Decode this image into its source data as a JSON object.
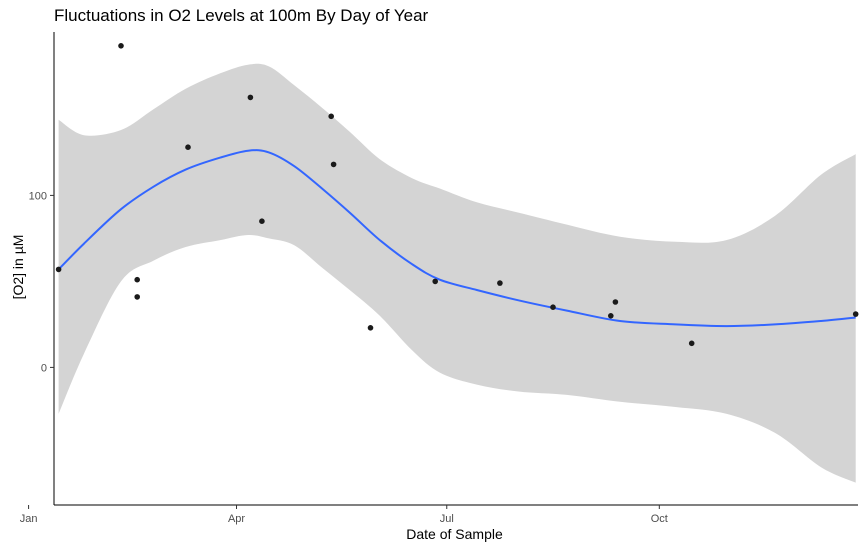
{
  "chart_data": {
    "type": "scatter",
    "title": "Fluctuations in O2 Levels at 100m By Day of Year",
    "xlabel": "Date of Sample",
    "ylabel": "[O2] in µM",
    "x_domain": [
      "2019-01-12",
      "2019-12-26"
    ],
    "ylim": [
      -80,
      195
    ],
    "x_ticks": [
      {
        "date": "2019-01-01",
        "label": "Jan"
      },
      {
        "date": "2019-04-01",
        "label": "Apr"
      },
      {
        "date": "2019-07-01",
        "label": "Jul"
      },
      {
        "date": "2019-10-01",
        "label": "Oct"
      }
    ],
    "y_ticks": [
      0,
      100
    ],
    "grid": false,
    "legend": "none",
    "colors": {
      "points": "#1a1a1a",
      "smooth_line": "#3366ff",
      "confidence_band": "#d4d4d4",
      "axis": "#000000"
    },
    "points": [
      {
        "x": "2019-01-14",
        "y": 57
      },
      {
        "x": "2019-02-10",
        "y": 187
      },
      {
        "x": "2019-02-17",
        "y": 51
      },
      {
        "x": "2019-02-17",
        "y": 41
      },
      {
        "x": "2019-03-11",
        "y": 128
      },
      {
        "x": "2019-04-07",
        "y": 157
      },
      {
        "x": "2019-04-12",
        "y": 85
      },
      {
        "x": "2019-05-12",
        "y": 146
      },
      {
        "x": "2019-05-13",
        "y": 118
      },
      {
        "x": "2019-05-29",
        "y": 23
      },
      {
        "x": "2019-06-26",
        "y": 50
      },
      {
        "x": "2019-07-24",
        "y": 49
      },
      {
        "x": "2019-08-16",
        "y": 35
      },
      {
        "x": "2019-09-10",
        "y": 30
      },
      {
        "x": "2019-09-12",
        "y": 38
      },
      {
        "x": "2019-10-15",
        "y": 14
      },
      {
        "x": "2019-12-25",
        "y": 31
      }
    ],
    "smooth_fit": [
      {
        "x": "2019-01-14",
        "y": 57,
        "lower": -27,
        "upper": 144
      },
      {
        "x": "2019-01-25",
        "y": 72,
        "lower": 8,
        "upper": 135
      },
      {
        "x": "2019-02-10",
        "y": 92,
        "lower": 50,
        "upper": 138
      },
      {
        "x": "2019-02-24",
        "y": 105,
        "lower": 62,
        "upper": 150
      },
      {
        "x": "2019-03-10",
        "y": 115,
        "lower": 70,
        "upper": 162
      },
      {
        "x": "2019-03-25",
        "y": 122,
        "lower": 74,
        "upper": 171
      },
      {
        "x": "2019-04-06",
        "y": 126,
        "lower": 77,
        "upper": 176
      },
      {
        "x": "2019-04-15",
        "y": 125,
        "lower": 75,
        "upper": 175
      },
      {
        "x": "2019-04-26",
        "y": 117,
        "lower": 71,
        "upper": 164
      },
      {
        "x": "2019-05-08",
        "y": 104,
        "lower": 58,
        "upper": 151
      },
      {
        "x": "2019-05-20",
        "y": 90,
        "lower": 45,
        "upper": 137
      },
      {
        "x": "2019-06-02",
        "y": 74,
        "lower": 30,
        "upper": 121
      },
      {
        "x": "2019-06-16",
        "y": 60,
        "lower": 10,
        "upper": 110
      },
      {
        "x": "2019-06-28",
        "y": 51,
        "lower": -3,
        "upper": 104
      },
      {
        "x": "2019-07-14",
        "y": 45,
        "lower": -10,
        "upper": 96
      },
      {
        "x": "2019-08-01",
        "y": 39,
        "lower": -14,
        "upper": 90
      },
      {
        "x": "2019-08-22",
        "y": 33,
        "lower": -16,
        "upper": 83
      },
      {
        "x": "2019-09-14",
        "y": 27,
        "lower": -20,
        "upper": 76
      },
      {
        "x": "2019-10-08",
        "y": 25,
        "lower": -23,
        "upper": 73
      },
      {
        "x": "2019-10-30",
        "y": 24,
        "lower": -27,
        "upper": 74
      },
      {
        "x": "2019-11-20",
        "y": 25,
        "lower": -38,
        "upper": 88
      },
      {
        "x": "2019-12-10",
        "y": 27,
        "lower": -58,
        "upper": 112
      },
      {
        "x": "2019-12-25",
        "y": 29,
        "lower": -67,
        "upper": 124
      }
    ]
  }
}
